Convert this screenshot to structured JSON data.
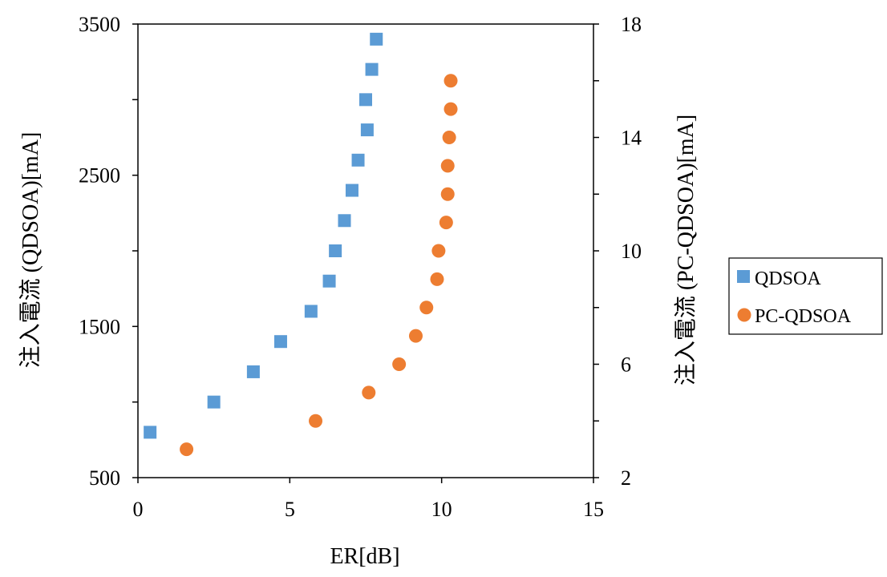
{
  "chart_data": {
    "type": "scatter",
    "xlabel": "ER[dB]",
    "ylabel_left": "注入電流 (QDSOA)[mA]",
    "ylabel_right": "注入電流 (PC-QDSOA)[mA]",
    "xlim": [
      0,
      15
    ],
    "ylim_left": [
      500,
      3500
    ],
    "ylim_right": [
      2,
      18
    ],
    "x_ticks": [
      "0",
      "5",
      "10",
      "15"
    ],
    "y_left_ticks": [
      "500",
      "1500",
      "2500",
      "3500"
    ],
    "y_right_ticks": [
      "2",
      "6",
      "10",
      "14",
      "18"
    ],
    "grid": false,
    "legend_position": "right",
    "series": [
      {
        "name": "QDSOA",
        "marker": "square",
        "color": "#5B9BD5",
        "axis": "left",
        "x": [
          0.4,
          2.5,
          3.8,
          4.7,
          5.7,
          6.3,
          6.5,
          6.8,
          7.05,
          7.25,
          7.55,
          7.5,
          7.7,
          7.85
        ],
        "y": [
          800,
          1000,
          1200,
          1400,
          1600,
          1800,
          2000,
          2200,
          2400,
          2600,
          2800,
          3000,
          3200,
          3400
        ]
      },
      {
        "name": "PC-QDSOA",
        "marker": "circle",
        "color": "#ED7D31",
        "axis": "right",
        "x": [
          1.6,
          5.85,
          7.6,
          8.6,
          9.15,
          9.5,
          9.85,
          9.9,
          10.15,
          10.2,
          10.2,
          10.25,
          10.3,
          10.3
        ],
        "y": [
          3,
          4,
          5,
          6,
          7,
          8,
          9,
          10,
          11,
          12,
          13,
          14,
          15,
          16
        ]
      }
    ]
  }
}
